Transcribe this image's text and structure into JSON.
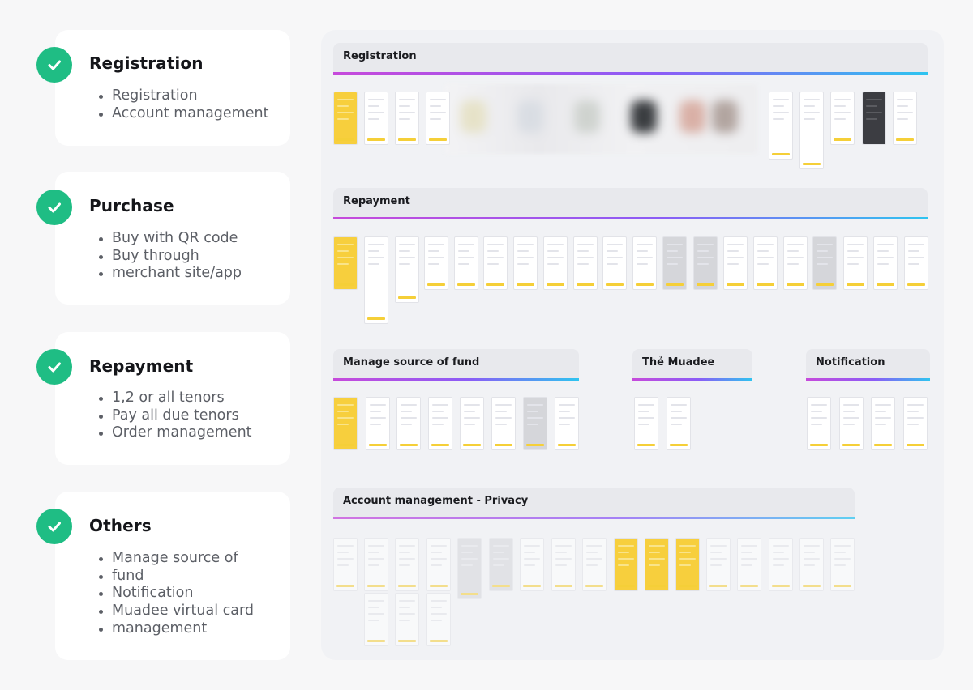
{
  "categories": [
    {
      "title": "Registration",
      "items": [
        "Registration",
        "Account management"
      ]
    },
    {
      "title": "Purchase",
      "items": [
        "Buy with QR code",
        "Buy through",
        "merchant site/app"
      ]
    },
    {
      "title": "Repayment",
      "items": [
        "1,2 or all tenors",
        "Pay all due tenors",
        "Order management"
      ]
    },
    {
      "title": "Others",
      "items": [
        "Manage source of",
        "fund",
        "Notification",
        "Muadee virtual card",
        "management"
      ]
    }
  ],
  "board": {
    "sections": [
      {
        "label": "Registration"
      },
      {
        "label": "Repayment"
      },
      {
        "label": "Manage source of fund"
      },
      {
        "label": "Thẻ Muadee"
      },
      {
        "label": "Notification"
      },
      {
        "label": "Account management - Privacy"
      }
    ]
  },
  "colors": {
    "check": "#1fbd84",
    "accent_yellow": "#f5cf38",
    "gradient": [
      "#c64adb",
      "#8b5cf6",
      "#2ec4f0"
    ]
  },
  "icons": {
    "check": "check-icon"
  }
}
